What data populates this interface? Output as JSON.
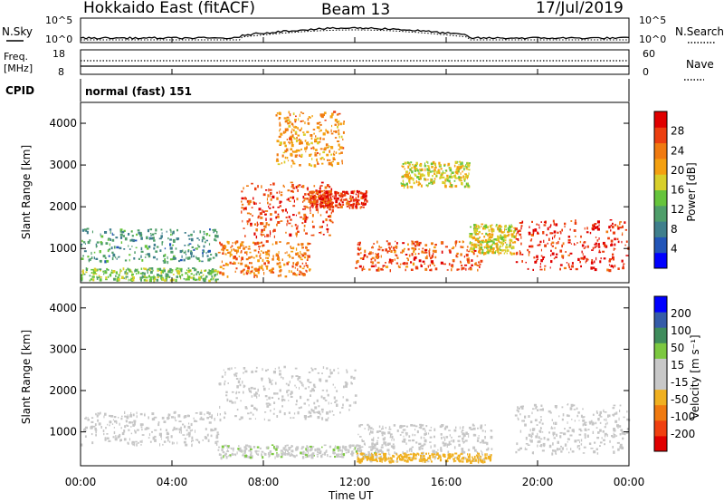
{
  "header": {
    "station": "Hokkaido East (fitACF)",
    "beam": "Beam 13",
    "date": "17/Jul/2019"
  },
  "noise_panel": {
    "left_label": "N.Sky",
    "right_label": "N.Search",
    "left_ticks": [
      "10^5",
      "10^0"
    ],
    "right_ticks": [
      "10^5",
      "10^0"
    ]
  },
  "freq_panel": {
    "left_label_1": "Freq.",
    "left_label_2": "[MHz]",
    "left_ticks": [
      "18",
      "8"
    ],
    "right_label": "Nave",
    "right_ticks": [
      "60",
      "0"
    ]
  },
  "cpid_panel": {
    "left_label": "CPID",
    "program": "normal (fast) 151"
  },
  "colors": {
    "power_scale": [
      "#0000ff",
      "#2255b8",
      "#3f7f8c",
      "#4f9e6a",
      "#66c43c",
      "#d8cf2a",
      "#f4a010",
      "#f07a10",
      "#ec3f10",
      "#e00000"
    ],
    "velocity_scale": [
      "#e00000",
      "#f04010",
      "#f07a10",
      "#f0b020",
      "#c8c8c8",
      "#c8c8c8",
      "#7cc840",
      "#3f8c5c",
      "#355ca8",
      "#0000ff"
    ],
    "gray": "#c6c6c6"
  },
  "chart_data": [
    {
      "type": "heatmap",
      "name": "power",
      "ylabel": "Slant Range [km]",
      "ylim": [
        180,
        4500
      ],
      "xlim": [
        "00:00",
        "24:00"
      ],
      "y_ticks": [
        1000,
        2000,
        3000,
        4000
      ],
      "colorbar_label": "Power [dB]",
      "colorbar_range": [
        0,
        32
      ],
      "colorbar_ticks": [
        4,
        8,
        12,
        16,
        20,
        24,
        28
      ],
      "regions": [
        {
          "t": [
            0.0,
            6.0
          ],
          "r": [
            700,
            1500
          ],
          "v": 10
        },
        {
          "t": [
            0.0,
            6.0
          ],
          "r": [
            250,
            550
          ],
          "v": 14
        },
        {
          "t": [
            6.0,
            10.0
          ],
          "r": [
            350,
            1200
          ],
          "v": 24
        },
        {
          "t": [
            7.0,
            11.0
          ],
          "r": [
            1300,
            2600
          ],
          "v": 27
        },
        {
          "t": [
            10.0,
            12.5
          ],
          "r": [
            2000,
            2400
          ],
          "v": 28
        },
        {
          "t": [
            8.5,
            11.5
          ],
          "r": [
            3000,
            4300
          ],
          "v": 22
        },
        {
          "t": [
            12.0,
            17.5
          ],
          "r": [
            500,
            1200
          ],
          "v": 26
        },
        {
          "t": [
            17.0,
            19.0
          ],
          "r": [
            900,
            1600
          ],
          "v": 18
        },
        {
          "t": [
            19.0,
            24.0
          ],
          "r": [
            500,
            1700
          ],
          "v": 29
        },
        {
          "t": [
            14.0,
            17.0
          ],
          "r": [
            2500,
            3100
          ],
          "v": 18
        }
      ]
    },
    {
      "type": "heatmap",
      "name": "velocity",
      "ylabel": "Slant Range [km]",
      "ylim": [
        180,
        4500
      ],
      "xlim": [
        "00:00",
        "24:00"
      ],
      "y_ticks": [
        1000,
        2000,
        3000,
        4000
      ],
      "colorbar_label": "Velocity [m s⁻¹]",
      "colorbar_range": [
        -250,
        250
      ],
      "colorbar_ticks": [
        200,
        100,
        50,
        15,
        -15,
        -50,
        -100,
        -200
      ],
      "regions": [
        {
          "t": [
            0.0,
            6.0
          ],
          "r": [
            700,
            1500
          ],
          "v": 0
        },
        {
          "t": [
            6.0,
            12.0
          ],
          "r": [
            1300,
            2600
          ],
          "v": 0
        },
        {
          "t": [
            12.0,
            18.0
          ],
          "r": [
            500,
            1200
          ],
          "v": 0
        },
        {
          "t": [
            6.0,
            13.0
          ],
          "r": [
            400,
            700
          ],
          "v": 40
        },
        {
          "t": [
            12.0,
            18.0
          ],
          "r": [
            300,
            500
          ],
          "v": -60
        },
        {
          "t": [
            19.0,
            24.0
          ],
          "r": [
            500,
            1700
          ],
          "v": 0
        }
      ]
    }
  ],
  "time_axis": {
    "ticks": [
      "00:00",
      "04:00",
      "08:00",
      "12:00",
      "16:00",
      "20:00",
      "00:00"
    ],
    "label": "Time UT"
  }
}
